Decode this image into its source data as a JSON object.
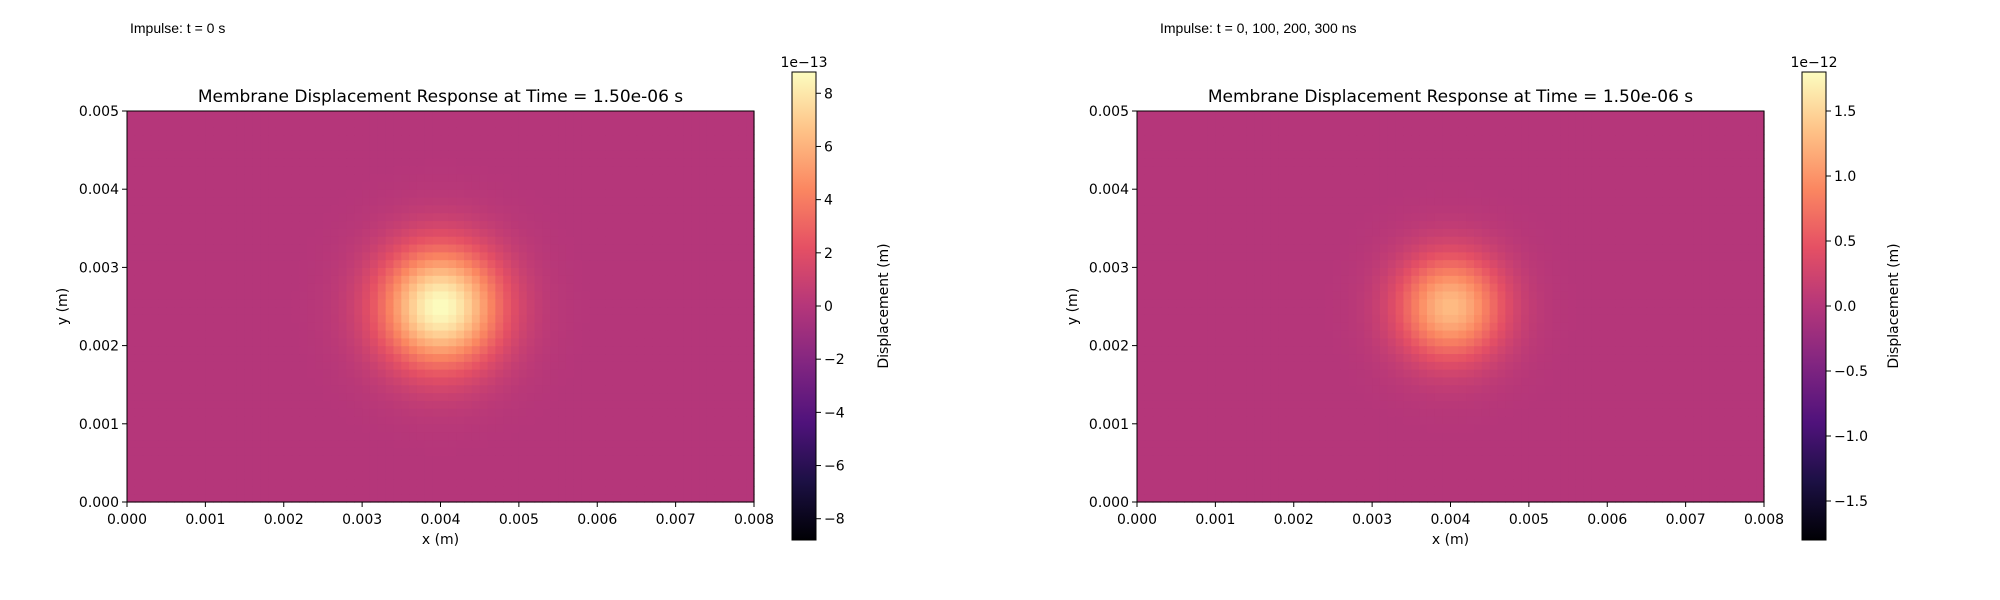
{
  "chart_data": [
    {
      "type": "heatmap",
      "impulse_label": "Impulse: t = 0 s",
      "title": "Membrane Displacement Response at Time = 1.50e-06 s",
      "xlabel": "x (m)",
      "ylabel": "y (m)",
      "xlim": [
        0,
        0.008
      ],
      "ylim": [
        0,
        0.005
      ],
      "xticks": [
        "0.000",
        "0.001",
        "0.002",
        "0.003",
        "0.004",
        "0.005",
        "0.006",
        "0.007",
        "0.008"
      ],
      "yticks": [
        "0.000",
        "0.001",
        "0.002",
        "0.003",
        "0.004",
        "0.005"
      ],
      "colormap": "magma",
      "colorbar": {
        "label": "Displacement (m)",
        "exponent_label": "1e−13",
        "range": [
          -8.8,
          8.8
        ],
        "ticks": [
          -8,
          -6,
          -4,
          -2,
          0,
          2,
          4,
          6,
          8
        ],
        "tick_labels": [
          "−8",
          "−6",
          "−4",
          "−2",
          "0",
          "2",
          "4",
          "6",
          "8"
        ]
      },
      "field": {
        "background_value": 0,
        "peak_center": [
          0.004,
          0.0025
        ],
        "peak_value": 8.8,
        "peak_radius": 0.0008
      }
    },
    {
      "type": "heatmap",
      "impulse_label": "Impulse: t = 0, 100, 200, 300 ns",
      "title": "Membrane Displacement Response at Time = 1.50e-06 s",
      "xlabel": "x (m)",
      "ylabel": "y (m)",
      "xlim": [
        0,
        0.008
      ],
      "ylim": [
        0,
        0.005
      ],
      "xticks": [
        "0.000",
        "0.001",
        "0.002",
        "0.003",
        "0.004",
        "0.005",
        "0.006",
        "0.007",
        "0.008"
      ],
      "yticks": [
        "0.000",
        "0.001",
        "0.002",
        "0.003",
        "0.004",
        "0.005"
      ],
      "colormap": "magma",
      "colorbar": {
        "label": "Displacement (m)",
        "exponent_label": "1e−12",
        "range": [
          -1.8,
          1.8
        ],
        "ticks": [
          -1.5,
          -1.0,
          -0.5,
          0.0,
          0.5,
          1.0,
          1.5
        ],
        "tick_labels": [
          "−1.5",
          "−1.0",
          "−0.5",
          "0.0",
          "0.5",
          "1.0",
          "1.5"
        ]
      },
      "field": {
        "background_value": 0,
        "peak_center": [
          0.004,
          0.0025
        ],
        "peak_value": 1.3,
        "peak_radius": 0.0007
      }
    }
  ]
}
